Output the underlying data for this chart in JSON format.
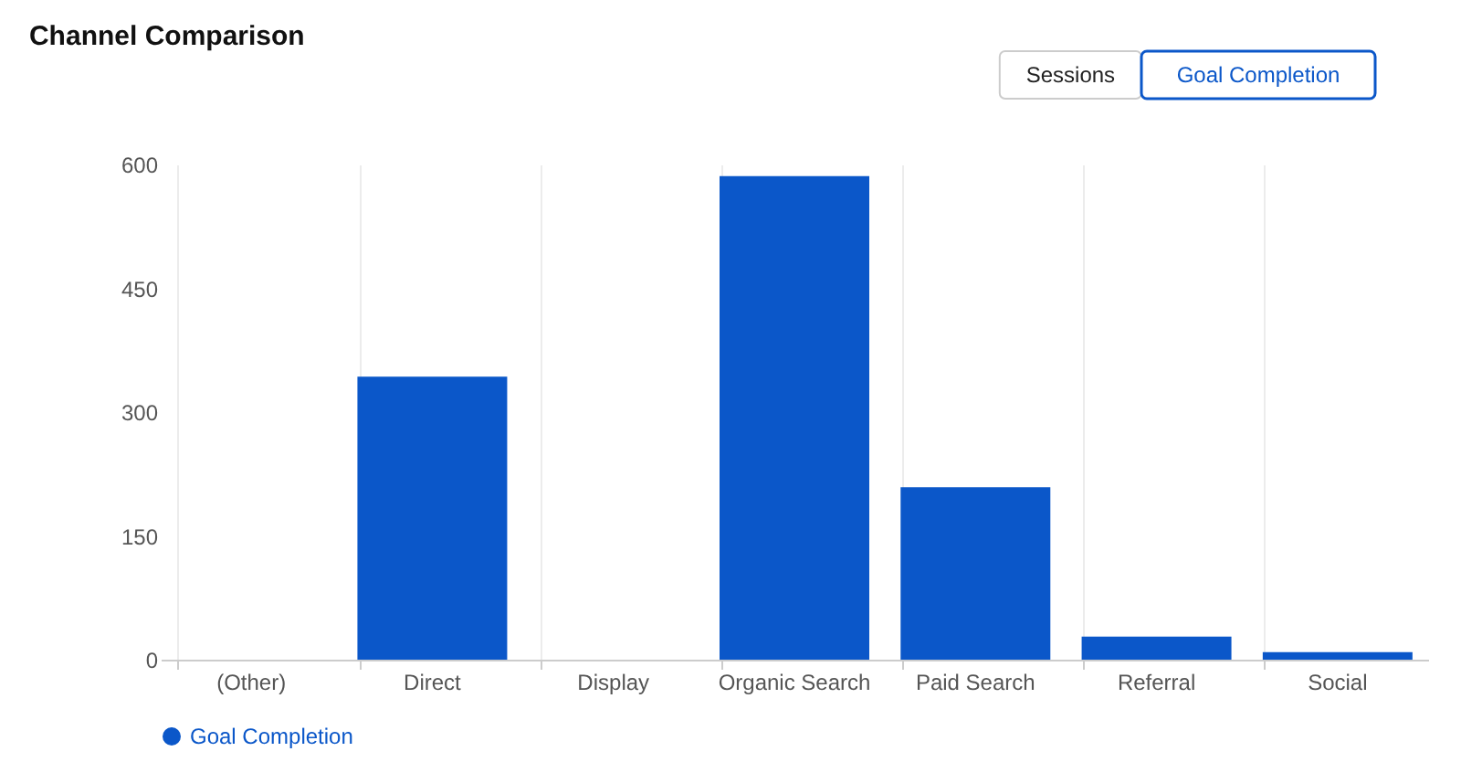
{
  "chart_data": {
    "type": "bar",
    "title": "Channel Comparison",
    "categories": [
      "(Other)",
      "Direct",
      "Display",
      "Organic Search",
      "Paid Search",
      "Referral",
      "Social"
    ],
    "series": [
      {
        "name": "Goal Completion",
        "color": "#0b57c9",
        "values": [
          0,
          343,
          0,
          586,
          209,
          28,
          9
        ]
      }
    ],
    "ylim": [
      0,
      600
    ],
    "yticks": [
      0,
      150,
      300,
      450,
      600
    ],
    "grid": "x",
    "legend": "bottom",
    "annotations": [
      "Sessions",
      "Goal Completion"
    ]
  }
}
